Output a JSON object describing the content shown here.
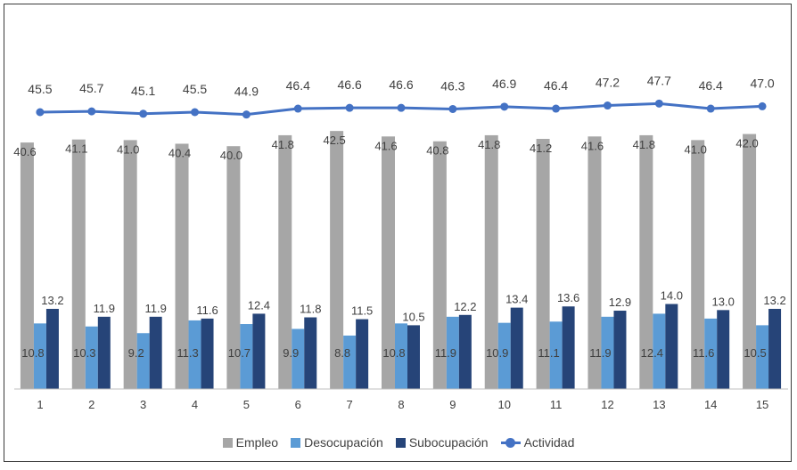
{
  "chart_data": {
    "type": "bar",
    "categories": [
      "1",
      "2",
      "3",
      "4",
      "5",
      "6",
      "7",
      "8",
      "9",
      "10",
      "11",
      "12",
      "13",
      "14",
      "15"
    ],
    "series": [
      {
        "name": "Empleo",
        "type": "bar",
        "color": "#a6a6a6",
        "values": [
          40.6,
          41.1,
          41.0,
          40.4,
          40.0,
          41.8,
          42.5,
          41.6,
          40.8,
          41.8,
          41.2,
          41.6,
          41.8,
          41.0,
          42.0
        ]
      },
      {
        "name": "Desocupación",
        "type": "bar",
        "color": "#5b9bd5",
        "values": [
          10.8,
          10.3,
          9.2,
          11.3,
          10.7,
          9.9,
          8.8,
          10.8,
          11.9,
          10.9,
          11.1,
          11.9,
          12.4,
          11.6,
          10.5
        ]
      },
      {
        "name": "Subocupación",
        "type": "bar",
        "color": "#264478",
        "values": [
          13.2,
          11.9,
          11.9,
          11.6,
          12.4,
          11.8,
          11.5,
          10.5,
          12.2,
          13.4,
          13.6,
          12.9,
          14.0,
          13.0,
          13.2
        ]
      },
      {
        "name": "Actividad",
        "type": "line",
        "color": "#4472c4",
        "values": [
          45.5,
          45.7,
          45.1,
          45.5,
          44.9,
          46.4,
          46.6,
          46.6,
          46.3,
          46.9,
          46.4,
          47.2,
          47.7,
          46.4,
          47.0
        ]
      }
    ],
    "legend_position": "bottom",
    "grid": false
  }
}
